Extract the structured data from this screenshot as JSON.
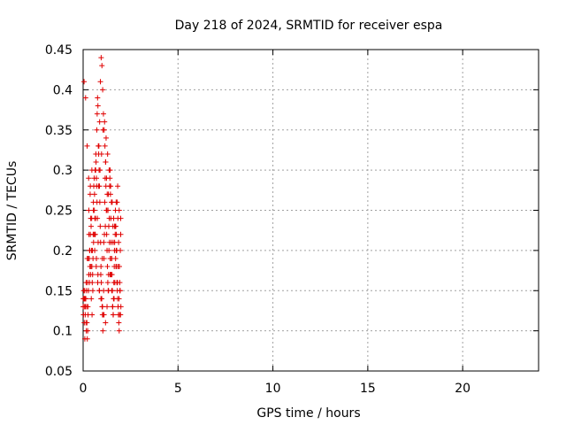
{
  "chart_data": {
    "type": "scatter",
    "title": "Day 218 of 2024, SRMTID for receiver espa",
    "xlabel": "GPS time / hours",
    "ylabel": "SRMTID / TECUs",
    "xlim": [
      0,
      24
    ],
    "ylim": [
      0.05,
      0.45
    ],
    "x_ticks": [
      0,
      5,
      10,
      15,
      20
    ],
    "y_ticks": [
      0.05,
      0.1,
      0.15,
      0.2,
      0.25,
      0.3,
      0.35,
      0.4,
      0.45
    ],
    "x_tick_labels": [
      "0",
      "5",
      "10",
      "15",
      "20"
    ],
    "y_tick_labels": [
      "0.05",
      "0.1",
      "0.15",
      "0.2",
      "0.25",
      "0.3",
      "0.35",
      "0.4",
      "0.45"
    ],
    "grid": true,
    "marker": "plus",
    "color": "#e00000",
    "series": [
      {
        "x": [
          0.0,
          0.02,
          0.04,
          0.06,
          0.08,
          0.1,
          0.12,
          0.14,
          0.16,
          0.18,
          0.2,
          0.22,
          0.24,
          0.26,
          0.28,
          0.3,
          0.32,
          0.34,
          0.36,
          0.38,
          0.4,
          0.42,
          0.44,
          0.46,
          0.48,
          0.5,
          0.52,
          0.54,
          0.56,
          0.58,
          0.6,
          0.62,
          0.64,
          0.66,
          0.68,
          0.7,
          0.72,
          0.74,
          0.76,
          0.78,
          0.8,
          0.82,
          0.84,
          0.86,
          0.88,
          0.9,
          0.92,
          0.94,
          0.96,
          0.98,
          1.0,
          1.02,
          1.04,
          1.06,
          1.08,
          1.1,
          1.12,
          1.14,
          1.16,
          1.18,
          1.2,
          1.22,
          1.24,
          1.26,
          1.28,
          1.3,
          1.32,
          1.34,
          1.36,
          1.38,
          1.4,
          1.42,
          1.44,
          1.46,
          1.48,
          1.5,
          1.52,
          1.54,
          1.56,
          1.58,
          1.6,
          1.62,
          1.64,
          1.66,
          1.68,
          1.7,
          1.72,
          1.74,
          1.76,
          1.78,
          1.8,
          1.82,
          1.84,
          1.86,
          1.88,
          1.9,
          1.92,
          1.94,
          1.96,
          1.98,
          0.03,
          0.07,
          0.11,
          0.15,
          0.19,
          0.23,
          0.27,
          0.31,
          0.35,
          0.39,
          0.43,
          0.47,
          0.51,
          0.55,
          0.59,
          0.63,
          0.67,
          0.71,
          0.75,
          0.79,
          0.83,
          0.87,
          0.91,
          0.95,
          0.99,
          1.03,
          1.07,
          1.11,
          1.15,
          1.19,
          1.23,
          1.27,
          1.31,
          1.35,
          1.39,
          1.43,
          1.47,
          1.51,
          1.55,
          1.59,
          1.63,
          1.67,
          1.71,
          1.75,
          1.79,
          1.83,
          1.87,
          1.91,
          1.95,
          1.99,
          0.05,
          0.13,
          0.21,
          0.29,
          0.37,
          0.45,
          0.53,
          0.61,
          0.69,
          0.77,
          0.85,
          0.93,
          1.01,
          1.09,
          1.17,
          1.25,
          1.33,
          1.41,
          1.49,
          1.57,
          1.65,
          1.73,
          1.81,
          1.89,
          1.97,
          0.09,
          0.17,
          0.25,
          0.33,
          0.41,
          0.49,
          0.57,
          0.65,
          0.73,
          0.81,
          0.89,
          0.97,
          1.05,
          1.13,
          1.21,
          1.29,
          1.37,
          1.45,
          1.53,
          1.61,
          1.69,
          1.77,
          1.85,
          1.93,
          0.01,
          0.06,
          0.14,
          0.22,
          0.3,
          0.38,
          0.46,
          0.54,
          0.62,
          0.7,
          0.78,
          0.86,
          0.94,
          1.02,
          1.1,
          1.18,
          1.26,
          1.34,
          1.42,
          1.5,
          1.58,
          1.66,
          1.74,
          1.82,
          1.9,
          1.98
        ],
        "y": [
          0.13,
          0.12,
          0.14,
          0.13,
          0.15,
          0.14,
          0.13,
          0.14,
          0.16,
          0.15,
          0.11,
          0.09,
          0.1,
          0.12,
          0.15,
          0.17,
          0.19,
          0.2,
          0.18,
          0.22,
          0.24,
          0.23,
          0.2,
          0.18,
          0.16,
          0.17,
          0.19,
          0.25,
          0.28,
          0.29,
          0.27,
          0.24,
          0.22,
          0.3,
          0.31,
          0.29,
          0.35,
          0.37,
          0.39,
          0.38,
          0.33,
          0.32,
          0.3,
          0.28,
          0.26,
          0.23,
          0.21,
          0.18,
          0.16,
          0.14,
          0.13,
          0.12,
          0.1,
          0.12,
          0.15,
          0.19,
          0.22,
          0.26,
          0.29,
          0.31,
          0.28,
          0.25,
          0.22,
          0.2,
          0.18,
          0.16,
          0.15,
          0.17,
          0.2,
          0.24,
          0.28,
          0.3,
          0.27,
          0.24,
          0.21,
          0.19,
          0.17,
          0.15,
          0.13,
          0.12,
          0.14,
          0.16,
          0.18,
          0.21,
          0.23,
          0.25,
          0.23,
          0.2,
          0.18,
          0.16,
          0.15,
          0.14,
          0.13,
          0.12,
          0.11,
          0.1,
          0.12,
          0.15,
          0.2,
          0.24,
          0.15,
          0.14,
          0.12,
          0.11,
          0.13,
          0.16,
          0.19,
          0.22,
          0.2,
          0.17,
          0.14,
          0.12,
          0.15,
          0.21,
          0.25,
          0.3,
          0.32,
          0.28,
          0.24,
          0.21,
          0.33,
          0.36,
          0.41,
          0.44,
          0.43,
          0.4,
          0.37,
          0.35,
          0.33,
          0.31,
          0.29,
          0.27,
          0.25,
          0.23,
          0.21,
          0.19,
          0.17,
          0.15,
          0.13,
          0.12,
          0.14,
          0.16,
          0.19,
          0.22,
          0.26,
          0.24,
          0.21,
          0.18,
          0.15,
          0.13,
          0.41,
          0.39,
          0.33,
          0.29,
          0.27,
          0.24,
          0.22,
          0.2,
          0.18,
          0.16,
          0.15,
          0.17,
          0.19,
          0.21,
          0.23,
          0.25,
          0.27,
          0.29,
          0.26,
          0.23,
          0.2,
          0.18,
          0.16,
          0.14,
          0.12,
          0.09,
          0.1,
          0.13,
          0.16,
          0.18,
          0.2,
          0.22,
          0.24,
          0.26,
          0.28,
          0.3,
          0.32,
          0.35,
          0.36,
          0.34,
          0.32,
          0.3,
          0.28,
          0.26,
          0.24,
          0.22,
          0.2,
          0.18,
          0.16,
          0.14,
          0.11,
          0.14,
          0.19,
          0.25,
          0.28,
          0.3,
          0.26,
          0.22,
          0.19,
          0.17,
          0.15,
          0.14,
          0.13,
          0.12,
          0.11,
          0.13,
          0.15,
          0.17,
          0.19,
          0.21,
          0.23,
          0.26,
          0.28,
          0.25,
          0.22
        ]
      }
    ]
  }
}
